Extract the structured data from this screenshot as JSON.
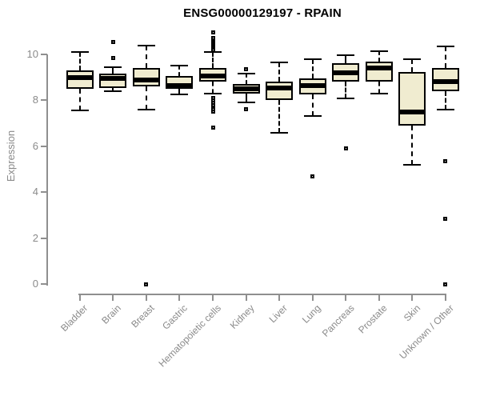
{
  "chart_data": {
    "type": "boxplot",
    "title": "ENSG00000129197 - RPAIN",
    "xlabel": "",
    "ylabel": "Expression",
    "ylim": [
      0,
      11
    ],
    "yticks": [
      0,
      2,
      4,
      6,
      8,
      10
    ],
    "grid": false,
    "legend": "none",
    "categories": [
      "Bladder",
      "Brain",
      "Breast",
      "Gastric",
      "Hematopoietic cells",
      "Kidney",
      "Liver",
      "Lung",
      "Pancreas",
      "Prostate",
      "Skin",
      "Unknown / Other"
    ],
    "series": [
      {
        "name": "Bladder",
        "whisker_low": 7.55,
        "q1": 8.5,
        "median": 9.0,
        "q3": 9.3,
        "whisker_high": 10.1,
        "outliers": []
      },
      {
        "name": "Brain",
        "whisker_low": 8.4,
        "q1": 8.55,
        "median": 8.95,
        "q3": 9.15,
        "whisker_high": 9.45,
        "outliers": [
          9.85,
          10.55
        ]
      },
      {
        "name": "Breast",
        "whisker_low": 7.6,
        "q1": 8.6,
        "median": 8.9,
        "q3": 9.4,
        "whisker_high": 10.4,
        "outliers": [
          0.0
        ]
      },
      {
        "name": "Gastric",
        "whisker_low": 8.25,
        "q1": 8.5,
        "median": 8.65,
        "q3": 9.05,
        "whisker_high": 9.5,
        "outliers": []
      },
      {
        "name": "Hematopoietic cells",
        "whisker_low": 8.3,
        "q1": 8.8,
        "median": 9.05,
        "q3": 9.4,
        "whisker_high": 10.1,
        "outliers": [
          10.95,
          10.7,
          10.62,
          10.55,
          10.48,
          10.4,
          10.32,
          10.25,
          10.18,
          8.1,
          8.0,
          7.9,
          7.8,
          7.7,
          7.6,
          7.5,
          6.8
        ]
      },
      {
        "name": "Kidney",
        "whisker_low": 7.9,
        "q1": 8.3,
        "median": 8.5,
        "q3": 8.7,
        "whisker_high": 9.15,
        "outliers": [
          9.35,
          7.6
        ]
      },
      {
        "name": "Liver",
        "whisker_low": 6.6,
        "q1": 8.0,
        "median": 8.55,
        "q3": 8.8,
        "whisker_high": 9.65,
        "outliers": []
      },
      {
        "name": "Lung",
        "whisker_low": 7.3,
        "q1": 8.25,
        "median": 8.65,
        "q3": 8.95,
        "whisker_high": 9.8,
        "outliers": [
          4.7
        ]
      },
      {
        "name": "Pancreas",
        "whisker_low": 8.1,
        "q1": 8.8,
        "median": 9.2,
        "q3": 9.6,
        "whisker_high": 9.95,
        "outliers": [
          5.9
        ]
      },
      {
        "name": "Prostate",
        "whisker_low": 8.3,
        "q1": 8.8,
        "median": 9.4,
        "q3": 9.7,
        "whisker_high": 10.15,
        "outliers": []
      },
      {
        "name": "Skin",
        "whisker_low": 5.2,
        "q1": 6.9,
        "median": 7.5,
        "q3": 9.25,
        "whisker_high": 9.8,
        "outliers": []
      },
      {
        "name": "Unknown / Other",
        "whisker_low": 7.6,
        "q1": 8.4,
        "median": 8.8,
        "q3": 9.4,
        "whisker_high": 10.35,
        "outliers": [
          5.35,
          2.85,
          0.0
        ]
      }
    ],
    "colors": {
      "box_fill": "#F0ECD0",
      "box_stroke": "#000000",
      "axis": "#8f8f8f",
      "tick_label": "#8a8a8a",
      "title": "#000000"
    }
  }
}
